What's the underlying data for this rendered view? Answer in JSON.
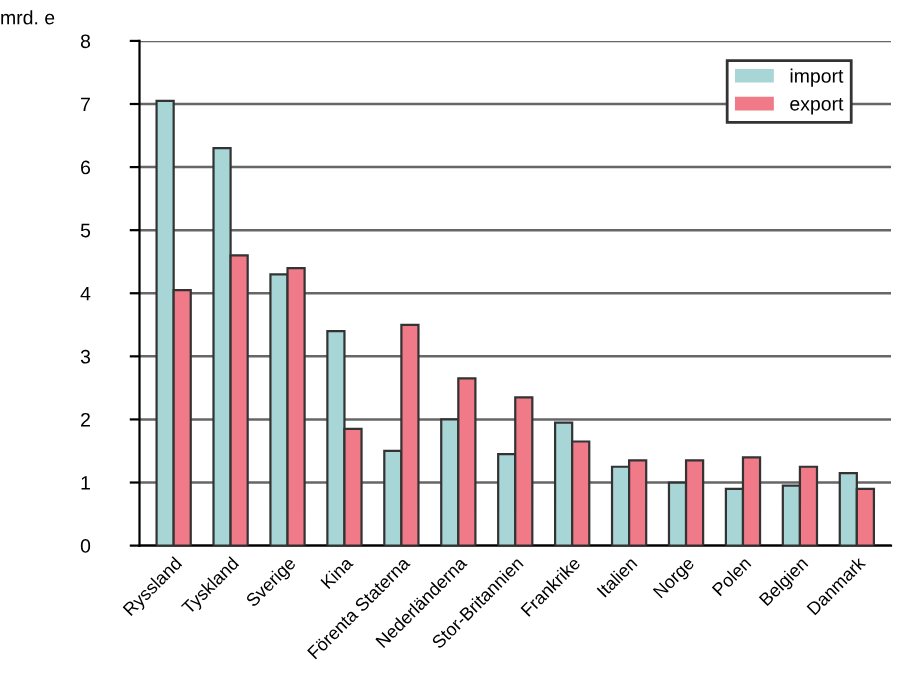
{
  "chart_data": {
    "type": "bar",
    "ylabel": "mrd. e",
    "categories": [
      "Ryssland",
      "Tyskland",
      "Sverige",
      "Kina",
      "Förenta Staterna",
      "Nederländerna",
      "Stor-Britannien",
      "Frankrike",
      "Italien",
      "Norge",
      "Polen",
      "Belgien",
      "Danmark"
    ],
    "series": [
      {
        "name": "import",
        "color": "#a8d6d6",
        "values": [
          7.05,
          6.3,
          4.3,
          3.4,
          1.5,
          2.0,
          1.45,
          1.95,
          1.25,
          1.0,
          0.9,
          0.95,
          1.15
        ]
      },
      {
        "name": "export",
        "color": "#f07a88",
        "values": [
          4.05,
          4.6,
          4.4,
          1.85,
          3.5,
          2.65,
          2.35,
          1.65,
          1.35,
          1.35,
          1.4,
          1.25,
          0.9
        ]
      }
    ],
    "ylim": [
      0,
      8
    ],
    "yticks": [
      0,
      1,
      2,
      3,
      4,
      5,
      6,
      7,
      8
    ],
    "grid": "y",
    "legend": "top right"
  }
}
